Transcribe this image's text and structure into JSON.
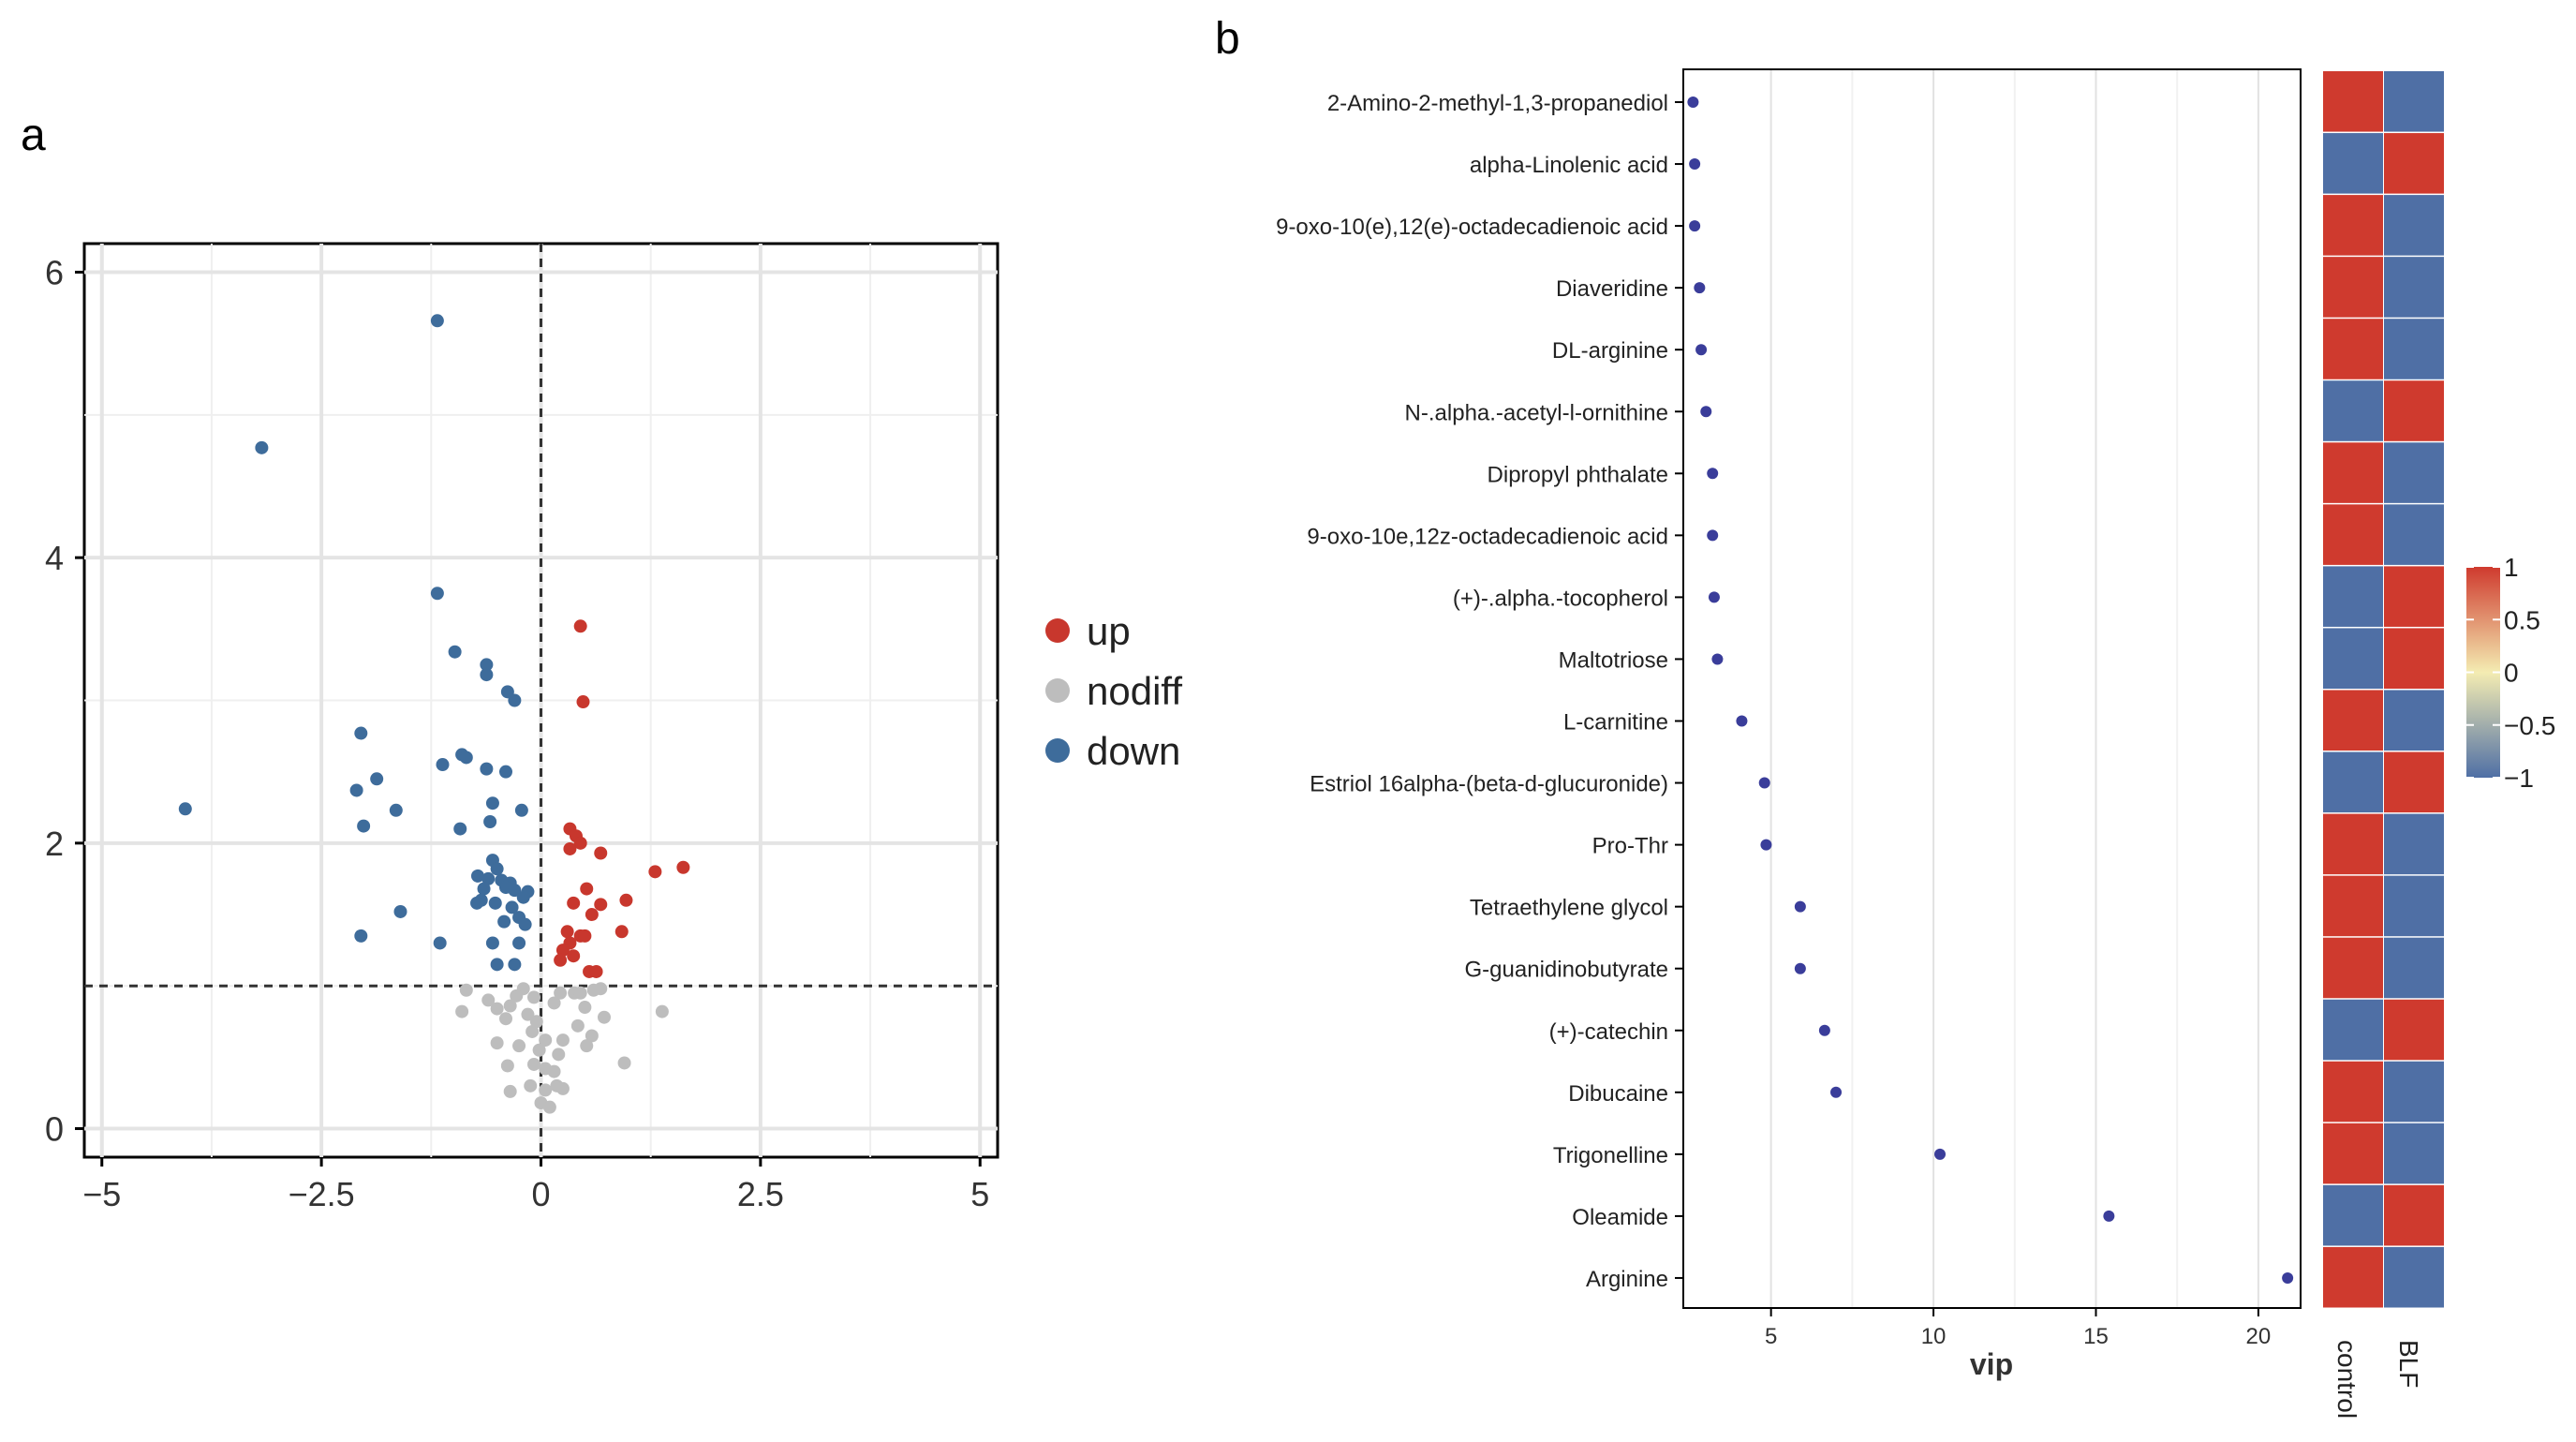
{
  "panel_a": {
    "label": "a",
    "legend": {
      "up": "up",
      "nodiff": "nodiff",
      "down": "down"
    }
  },
  "panel_b": {
    "label": "b",
    "columns": [
      "control",
      "BLF"
    ]
  },
  "colors": {
    "up": "#c8372d",
    "nodiff": "#bdbdbd",
    "down": "#3e6c9b",
    "dot": "#3a3d9a",
    "heat_high": "#cf3a2e",
    "heat_low": "#4f6fa5",
    "heat_mid": "#f4ecb2",
    "grid": "#e4e4e4",
    "axis": "#000000"
  },
  "chart_data": [
    {
      "type": "scatter",
      "title": "",
      "xlabel": "",
      "ylabel": "",
      "xlim": [
        -5.2,
        5.2
      ],
      "ylim": [
        -0.2,
        6.2
      ],
      "xticks": [
        -5,
        -2.5,
        0,
        2.5,
        5
      ],
      "xtick_labels": [
        "−5",
        "−2.5",
        "0",
        "2.5",
        "5"
      ],
      "yticks": [
        0,
        2,
        4,
        6
      ],
      "ytick_labels": [
        "0",
        "2",
        "4",
        "6"
      ],
      "threshold_x": 0,
      "threshold_y": 1.0,
      "legend_position": "right",
      "series": [
        {
          "name": "up",
          "points": [
            [
              0.45,
              3.52
            ],
            [
              0.48,
              2.99
            ],
            [
              0.33,
              2.1
            ],
            [
              0.4,
              2.05
            ],
            [
              0.45,
              2.0
            ],
            [
              0.33,
              1.96
            ],
            [
              0.68,
              1.93
            ],
            [
              1.3,
              1.8
            ],
            [
              1.62,
              1.83
            ],
            [
              0.52,
              1.68
            ],
            [
              0.37,
              1.58
            ],
            [
              0.68,
              1.57
            ],
            [
              0.97,
              1.6
            ],
            [
              0.58,
              1.5
            ],
            [
              0.3,
              1.38
            ],
            [
              0.45,
              1.35
            ],
            [
              0.5,
              1.35
            ],
            [
              0.33,
              1.3
            ],
            [
              0.92,
              1.38
            ],
            [
              0.25,
              1.25
            ],
            [
              0.37,
              1.21
            ],
            [
              0.22,
              1.18
            ],
            [
              0.55,
              1.1
            ],
            [
              0.63,
              1.1
            ]
          ]
        },
        {
          "name": "nodiff",
          "points": [
            [
              -0.85,
              0.97
            ],
            [
              -0.2,
              0.98
            ],
            [
              -0.28,
              0.93
            ],
            [
              -0.08,
              0.92
            ],
            [
              0.22,
              0.95
            ],
            [
              0.38,
              0.95
            ],
            [
              0.45,
              0.95
            ],
            [
              0.6,
              0.97
            ],
            [
              0.68,
              0.98
            ],
            [
              -0.6,
              0.9
            ],
            [
              -0.9,
              0.82
            ],
            [
              -0.5,
              0.84
            ],
            [
              -0.35,
              0.86
            ],
            [
              -0.15,
              0.8
            ],
            [
              0.15,
              0.88
            ],
            [
              0.5,
              0.85
            ],
            [
              1.38,
              0.82
            ],
            [
              -0.4,
              0.77
            ],
            [
              -0.05,
              0.75
            ],
            [
              0.42,
              0.72
            ],
            [
              0.72,
              0.78
            ],
            [
              -0.1,
              0.68
            ],
            [
              0.05,
              0.62
            ],
            [
              0.25,
              0.62
            ],
            [
              0.58,
              0.65
            ],
            [
              -0.5,
              0.6
            ],
            [
              -0.25,
              0.58
            ],
            [
              -0.02,
              0.55
            ],
            [
              0.2,
              0.52
            ],
            [
              0.52,
              0.58
            ],
            [
              -0.08,
              0.45
            ],
            [
              0.05,
              0.42
            ],
            [
              -0.38,
              0.44
            ],
            [
              0.15,
              0.4
            ],
            [
              0.95,
              0.46
            ],
            [
              -0.12,
              0.3
            ],
            [
              0.05,
              0.27
            ],
            [
              0.18,
              0.3
            ],
            [
              0.25,
              0.28
            ],
            [
              -0.35,
              0.26
            ],
            [
              0.0,
              0.18
            ],
            [
              0.1,
              0.15
            ]
          ]
        },
        {
          "name": "down",
          "points": [
            [
              -1.18,
              5.66
            ],
            [
              -3.18,
              4.77
            ],
            [
              -1.18,
              3.75
            ],
            [
              -0.98,
              3.34
            ],
            [
              -0.62,
              3.25
            ],
            [
              -0.62,
              3.18
            ],
            [
              -0.38,
              3.06
            ],
            [
              -0.3,
              3.0
            ],
            [
              -2.05,
              2.77
            ],
            [
              -0.9,
              2.62
            ],
            [
              -0.85,
              2.6
            ],
            [
              -1.12,
              2.55
            ],
            [
              -0.62,
              2.52
            ],
            [
              -0.4,
              2.5
            ],
            [
              -1.87,
              2.45
            ],
            [
              -2.1,
              2.37
            ],
            [
              -0.55,
              2.28
            ],
            [
              -0.22,
              2.23
            ],
            [
              -4.05,
              2.24
            ],
            [
              -1.65,
              2.23
            ],
            [
              -0.58,
              2.15
            ],
            [
              -2.02,
              2.12
            ],
            [
              -0.92,
              2.1
            ],
            [
              -0.55,
              1.88
            ],
            [
              -0.5,
              1.82
            ],
            [
              -0.72,
              1.77
            ],
            [
              -0.6,
              1.75
            ],
            [
              -0.45,
              1.74
            ],
            [
              -0.35,
              1.72
            ],
            [
              -0.65,
              1.68
            ],
            [
              -0.4,
              1.69
            ],
            [
              -0.3,
              1.67
            ],
            [
              -0.15,
              1.66
            ],
            [
              -0.2,
              1.62
            ],
            [
              -0.68,
              1.6
            ],
            [
              -0.52,
              1.58
            ],
            [
              -0.73,
              1.58
            ],
            [
              -0.33,
              1.55
            ],
            [
              -0.25,
              1.48
            ],
            [
              -1.6,
              1.52
            ],
            [
              -0.42,
              1.45
            ],
            [
              -0.18,
              1.43
            ],
            [
              -2.05,
              1.35
            ],
            [
              -1.15,
              1.3
            ],
            [
              -0.55,
              1.3
            ],
            [
              -0.25,
              1.3
            ],
            [
              -0.5,
              1.15
            ],
            [
              -0.3,
              1.15
            ]
          ]
        }
      ]
    },
    {
      "type": "scatter",
      "title": "",
      "xlabel": "vip",
      "ylabel": "",
      "xlim": [
        2.3,
        21.3
      ],
      "xticks": [
        5,
        10,
        15,
        20
      ],
      "xtick_labels": [
        "5",
        "10",
        "15",
        "20"
      ],
      "categories": [
        "2-Amino-2-methyl-1,3-propanediol",
        "alpha-Linolenic acid",
        "9-oxo-10(e),12(e)-octadecadienoic acid",
        "Diaveridine",
        "DL-arginine",
        "N-.alpha.-acetyl-l-ornithine",
        "Dipropyl phthalate",
        "9-oxo-10e,12z-octadecadienoic acid",
        "(+)-.alpha.-tocopherol",
        "Maltotriose",
        "L-carnitine",
        "Estriol 16alpha-(beta-d-glucuronide)",
        "Pro-Thr",
        "Tetraethylene glycol",
        "G-guanidinobutyrate",
        "(+)-catechin",
        "Dibucaine",
        "Trigonelline",
        "Oleamide",
        "Arginine"
      ],
      "values": [
        2.6,
        2.65,
        2.65,
        2.8,
        2.85,
        3.0,
        3.2,
        3.2,
        3.25,
        3.35,
        4.1,
        4.8,
        4.85,
        5.9,
        5.9,
        6.65,
        7.0,
        10.2,
        15.4,
        20.9
      ]
    },
    {
      "type": "heatmap",
      "title": "",
      "columns": [
        "control",
        "BLF"
      ],
      "rows": [
        "2-Amino-2-methyl-1,3-propanediol",
        "alpha-Linolenic acid",
        "9-oxo-10(e),12(e)-octadecadienoic acid",
        "Diaveridine",
        "DL-arginine",
        "N-.alpha.-acetyl-l-ornithine",
        "Dipropyl phthalate",
        "9-oxo-10e,12z-octadecadienoic acid",
        "(+)-.alpha.-tocopherol",
        "Maltotriose",
        "L-carnitine",
        "Estriol 16alpha-(beta-d-glucuronide)",
        "Pro-Thr",
        "Tetraethylene glycol",
        "G-guanidinobutyrate",
        "(+)-catechin",
        "Dibucaine",
        "Trigonelline",
        "Oleamide",
        "Arginine"
      ],
      "values": [
        [
          1,
          -1
        ],
        [
          -1,
          1
        ],
        [
          1,
          -1
        ],
        [
          1,
          -1
        ],
        [
          1,
          -1
        ],
        [
          -1,
          1
        ],
        [
          1,
          -1
        ],
        [
          1,
          -1
        ],
        [
          -1,
          1
        ],
        [
          -1,
          1
        ],
        [
          1,
          -1
        ],
        [
          -1,
          1
        ],
        [
          1,
          -1
        ],
        [
          1,
          -1
        ],
        [
          1,
          -1
        ],
        [
          -1,
          1
        ],
        [
          1,
          -1
        ],
        [
          1,
          -1
        ],
        [
          -1,
          1
        ],
        [
          1,
          -1
        ]
      ],
      "colorbar": {
        "range": [
          -1,
          1
        ],
        "ticks": [
          1,
          0.5,
          0,
          -0.5,
          -1
        ],
        "tick_labels": [
          "1",
          "0.5",
          "0",
          "−0.5",
          "−1"
        ]
      }
    }
  ]
}
